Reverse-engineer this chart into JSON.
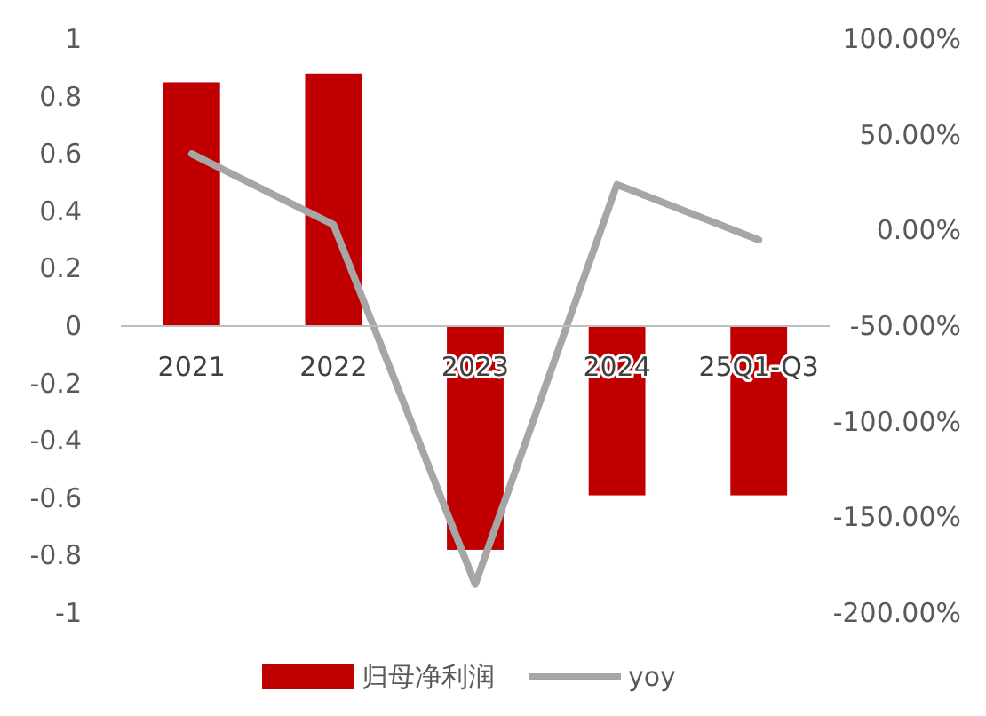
{
  "chart_data": {
    "type": "bar",
    "categories": [
      "2021",
      "2022",
      "2023",
      "2024",
      "25Q1-Q3"
    ],
    "series": [
      {
        "name": "归母净利润",
        "color": "#c00000",
        "values": [
          0.85,
          0.88,
          -0.78,
          -0.59,
          -0.59
        ]
      },
      {
        "name": "yoy",
        "type": "line",
        "axis": "y2",
        "color": "#a6a6a6",
        "values": [
          40,
          3,
          -185,
          24,
          -5
        ]
      }
    ],
    "ylim": [
      -1,
      1
    ],
    "yticks": [
      -1,
      -0.8,
      -0.6,
      -0.4,
      -0.2,
      0,
      0.2,
      0.4,
      0.6,
      0.8,
      1
    ],
    "y2lim": [
      -200,
      100
    ],
    "y2ticks": [
      {
        "value": -200,
        "label": "-200.00%"
      },
      {
        "value": -150,
        "label": "-150.00%"
      },
      {
        "value": -100,
        "label": "-100.00%"
      },
      {
        "value": -50,
        "label": "-50.00%"
      },
      {
        "value": 0,
        "label": "0.00%"
      },
      {
        "value": 50,
        "label": "50.00%"
      },
      {
        "value": 100,
        "label": "100.00%"
      }
    ],
    "legend": "bottom",
    "line_style": "solid",
    "marker": "none",
    "grid": false
  }
}
